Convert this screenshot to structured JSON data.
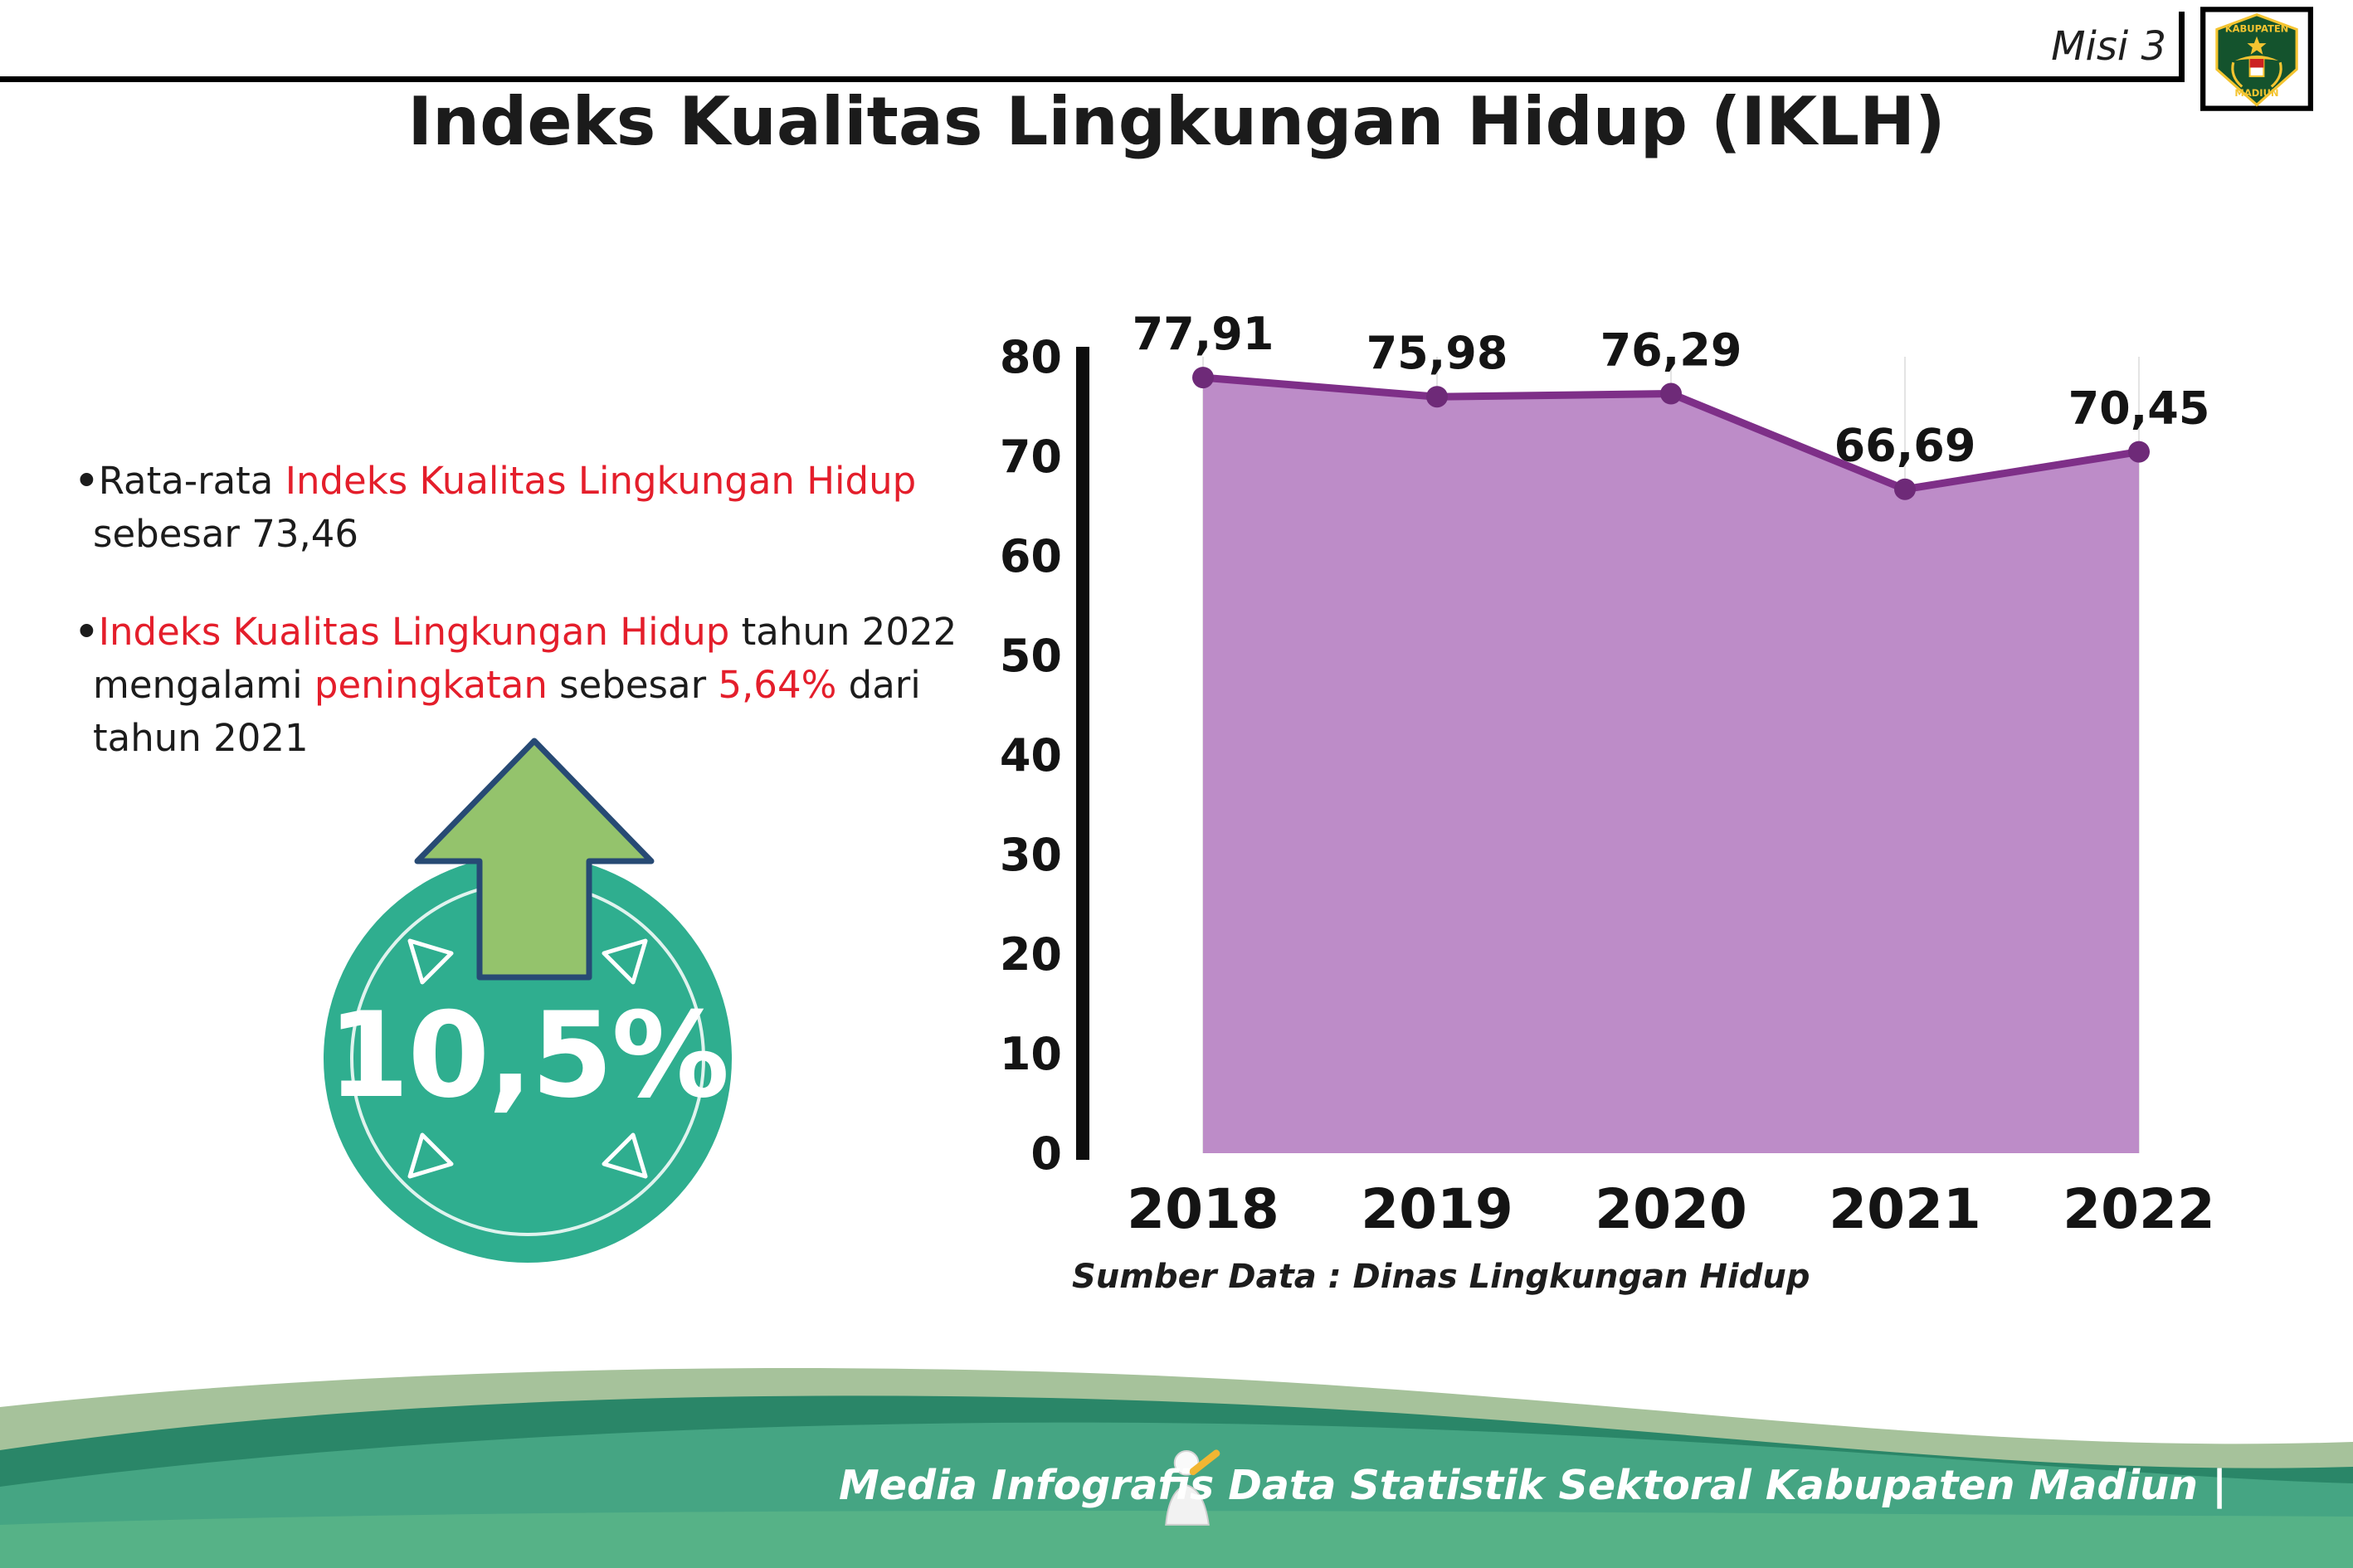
{
  "header": {
    "misi_label": "Misi 3",
    "title": "Indeks Kualitas Lingkungan Hidup (IKLH)",
    "logo": {
      "top_text": "KABUPATEN",
      "bottom_text": "MADIUN"
    }
  },
  "bullets": [
    {
      "marker": "•",
      "segments": [
        {
          "text": "Rata-rata ",
          "style": "dark"
        },
        {
          "text": "Indeks Kualitas Lingkungan Hidup",
          "style": "red"
        },
        {
          "text": " sebesar 73,46",
          "style": "dark"
        }
      ]
    },
    {
      "marker": "•",
      "segments": [
        {
          "text": "Indeks Kualitas Lingkungan Hidup",
          "style": "red"
        },
        {
          "text": " tahun 2022 mengalami ",
          "style": "dark"
        },
        {
          "text": "peningkatan",
          "style": "red"
        },
        {
          "text": " sebesar ",
          "style": "dark"
        },
        {
          "text": "5,64%",
          "style": "red"
        },
        {
          "text": " dari tahun 2021",
          "style": "dark"
        }
      ]
    }
  ],
  "increase_badge": {
    "value": "10,5%"
  },
  "chart_data": {
    "type": "area",
    "title": "Indeks Kualitas Lingkungan Hidup (IKLH)",
    "categories": [
      "2018",
      "2019",
      "2020",
      "2021",
      "2022"
    ],
    "values": [
      77.91,
      75.98,
      76.29,
      66.69,
      70.45
    ],
    "value_labels": [
      "77,91",
      "75,98",
      "76,29",
      "66,69",
      "70,45"
    ],
    "ylim": [
      0,
      80
    ],
    "yticks": [
      0,
      10,
      20,
      30,
      40,
      50,
      60,
      70,
      80
    ],
    "grid": "vertical-light",
    "legend": "none",
    "source": "Sumber Data : Dinas Lingkungan Hidup"
  },
  "footer": {
    "credit": "Media Infografis Data Statistik Sektoral Kabupaten Madiun |"
  },
  "colors": {
    "red_accent": "#e41e2b",
    "area_fill": "#bd8cc8",
    "line_purple": "#7e2f88",
    "dot_purple": "#6e2a78",
    "circle_teal": "#2fae8f",
    "arrow_green": "#94c36c",
    "arrow_outline": "#274a74",
    "footer_teal": "#45a583",
    "footer_dark": "#2a8668",
    "footer_sage": "#a6c29b",
    "footer_light": "#56b287",
    "axis_black": "#0d0d0d"
  }
}
